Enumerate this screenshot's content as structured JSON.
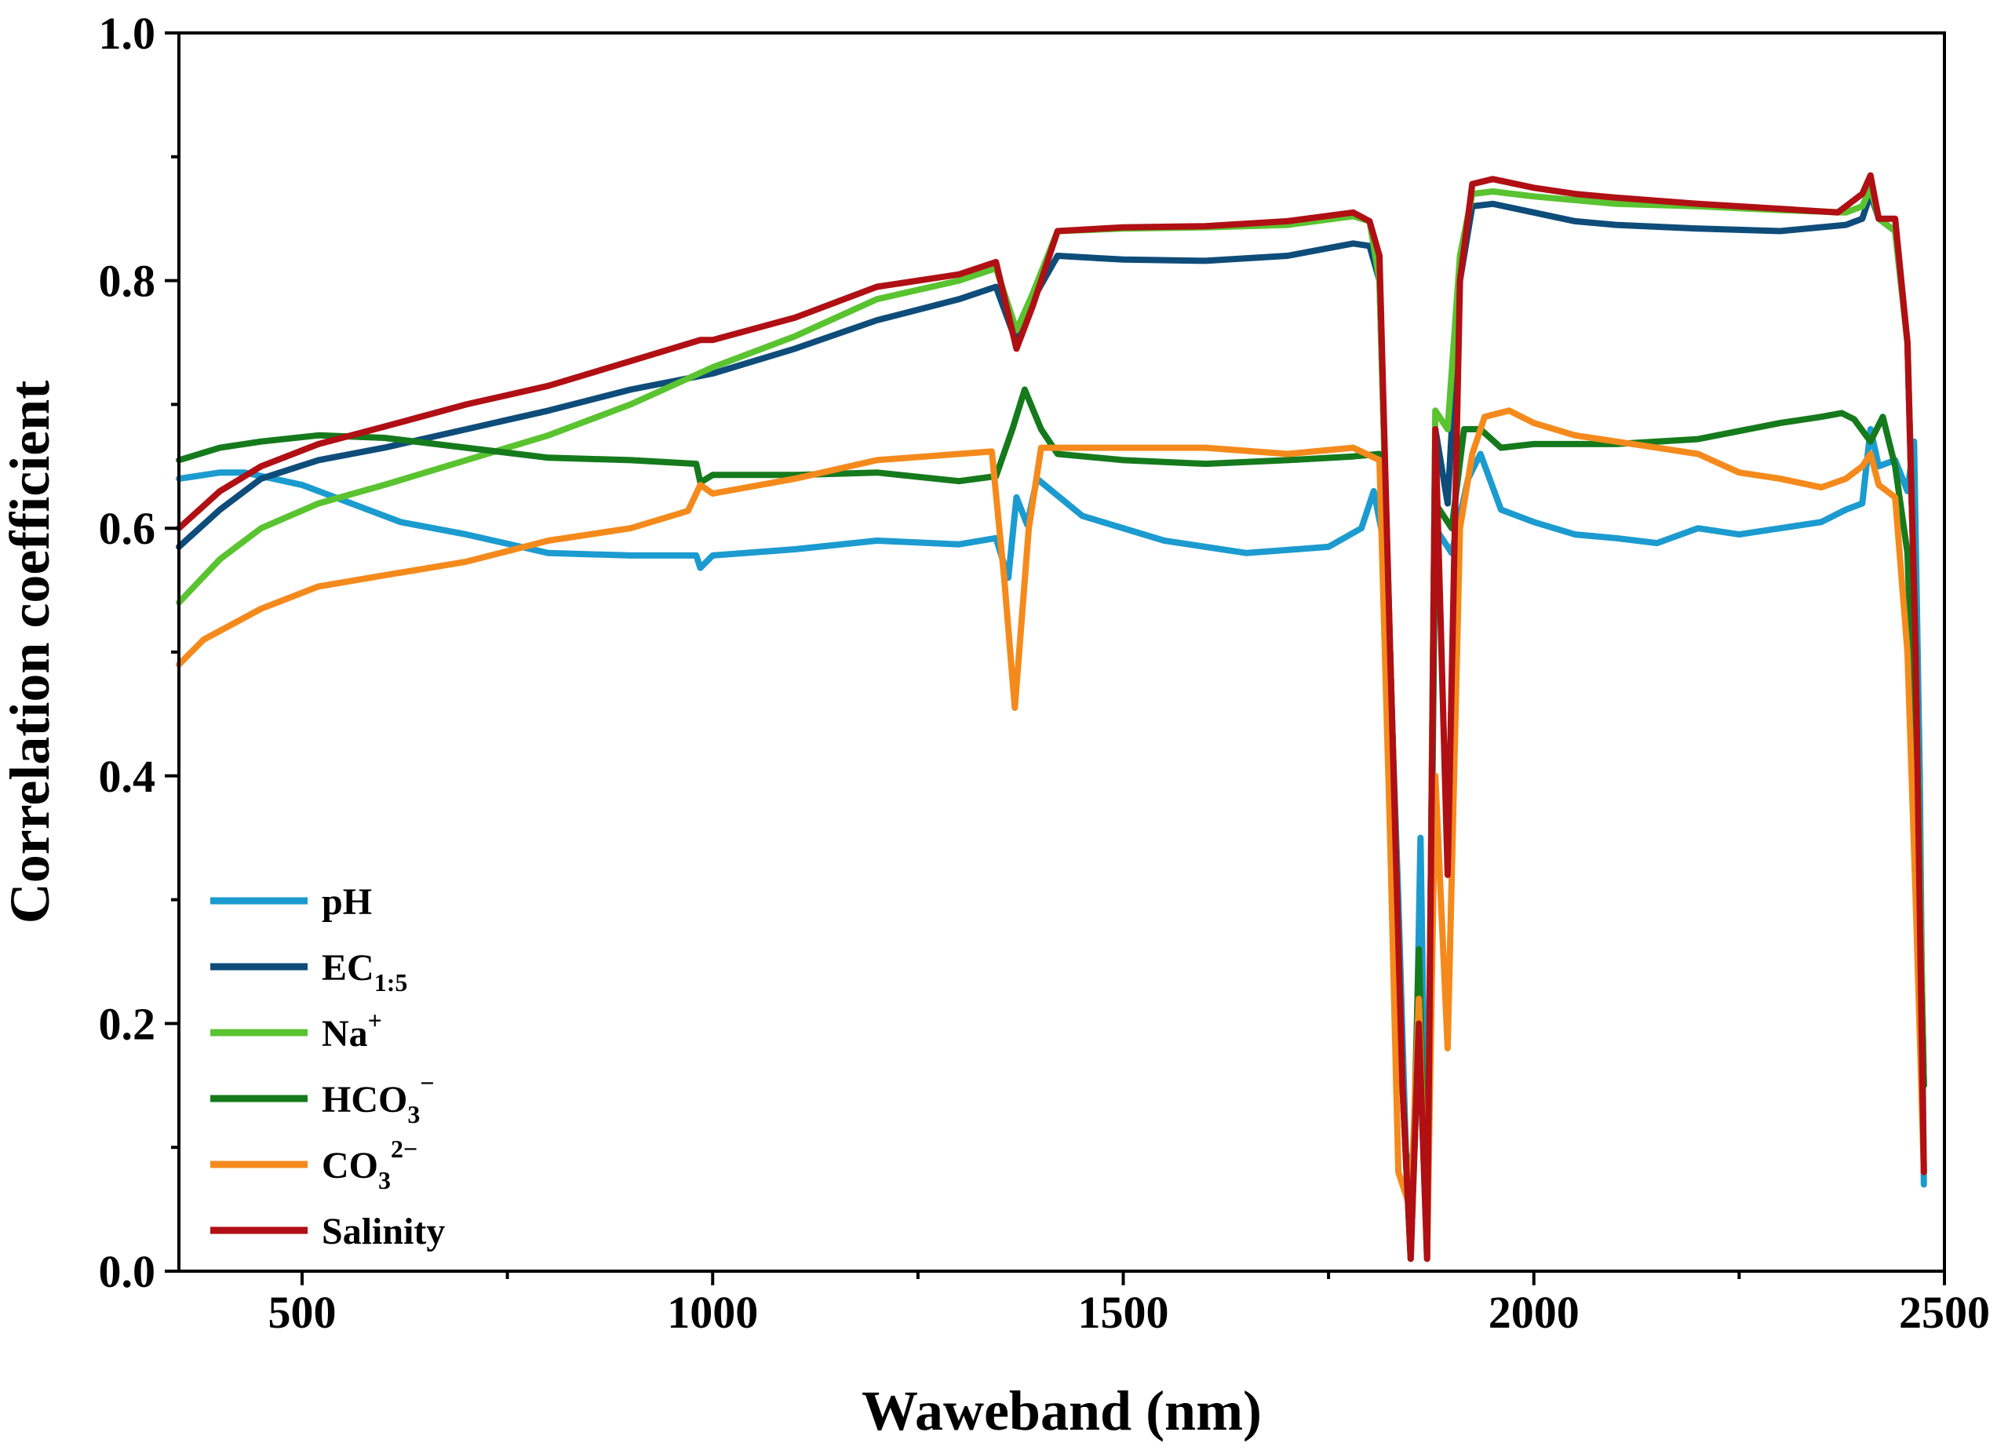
{
  "chart_data": {
    "type": "line",
    "title": "",
    "xlabel": "Waweband (nm)",
    "ylabel": "Correlation coefficient",
    "xlim": [
      350,
      2500
    ],
    "ylim": [
      0.0,
      1.0
    ],
    "x_major_ticks": [
      500,
      1000,
      1500,
      2000,
      2500
    ],
    "x_minor_ticks": [
      750,
      1250,
      1750,
      2250
    ],
    "y_major_ticks": [
      0.0,
      0.2,
      0.4,
      0.6,
      0.8,
      1.0
    ],
    "y_minor_ticks": [
      0.1,
      0.3,
      0.5,
      0.7,
      0.9
    ],
    "x_tick_labels": [
      "500",
      "1000",
      "1500",
      "2000",
      "2500"
    ],
    "y_tick_labels": [
      "0.0",
      "0.2",
      "0.4",
      "0.6",
      "0.8",
      "1.0"
    ],
    "grid": false,
    "legend_position": "bottom-left",
    "series": [
      {
        "name": "pH",
        "name_sub": "",
        "name_sup": "",
        "color": "#1B9BCF",
        "points": [
          [
            350,
            0.64
          ],
          [
            400,
            0.645
          ],
          [
            430,
            0.645
          ],
          [
            500,
            0.635
          ],
          [
            560,
            0.62
          ],
          [
            620,
            0.605
          ],
          [
            700,
            0.595
          ],
          [
            800,
            0.58
          ],
          [
            900,
            0.578
          ],
          [
            980,
            0.578
          ],
          [
            985,
            0.568
          ],
          [
            1000,
            0.578
          ],
          [
            1100,
            0.583
          ],
          [
            1200,
            0.59
          ],
          [
            1300,
            0.587
          ],
          [
            1345,
            0.592
          ],
          [
            1360,
            0.56
          ],
          [
            1370,
            0.625
          ],
          [
            1383,
            0.603
          ],
          [
            1395,
            0.64
          ],
          [
            1450,
            0.61
          ],
          [
            1550,
            0.59
          ],
          [
            1650,
            0.58
          ],
          [
            1750,
            0.585
          ],
          [
            1790,
            0.6
          ],
          [
            1805,
            0.63
          ],
          [
            1820,
            0.58
          ],
          [
            1835,
            0.3
          ],
          [
            1845,
            0.08
          ],
          [
            1855,
            0.1
          ],
          [
            1862,
            0.35
          ],
          [
            1870,
            0.01
          ],
          [
            1880,
            0.6
          ],
          [
            1900,
            0.58
          ],
          [
            1920,
            0.64
          ],
          [
            1935,
            0.66
          ],
          [
            1960,
            0.615
          ],
          [
            2000,
            0.605
          ],
          [
            2050,
            0.595
          ],
          [
            2100,
            0.592
          ],
          [
            2150,
            0.588
          ],
          [
            2200,
            0.6
          ],
          [
            2250,
            0.595
          ],
          [
            2300,
            0.6
          ],
          [
            2350,
            0.605
          ],
          [
            2380,
            0.615
          ],
          [
            2400,
            0.62
          ],
          [
            2410,
            0.68
          ],
          [
            2420,
            0.65
          ],
          [
            2440,
            0.655
          ],
          [
            2455,
            0.63
          ],
          [
            2463,
            0.67
          ],
          [
            2470,
            0.4
          ],
          [
            2475,
            0.07
          ]
        ]
      },
      {
        "name": "EC",
        "name_sub": "1:5",
        "name_sup": "",
        "color": "#0E4C7A",
        "points": [
          [
            350,
            0.585
          ],
          [
            400,
            0.615
          ],
          [
            450,
            0.64
          ],
          [
            520,
            0.655
          ],
          [
            600,
            0.665
          ],
          [
            700,
            0.68
          ],
          [
            800,
            0.695
          ],
          [
            900,
            0.712
          ],
          [
            1000,
            0.725
          ],
          [
            1100,
            0.745
          ],
          [
            1200,
            0.768
          ],
          [
            1300,
            0.785
          ],
          [
            1345,
            0.795
          ],
          [
            1370,
            0.75
          ],
          [
            1390,
            0.785
          ],
          [
            1420,
            0.82
          ],
          [
            1500,
            0.817
          ],
          [
            1600,
            0.816
          ],
          [
            1700,
            0.82
          ],
          [
            1780,
            0.83
          ],
          [
            1800,
            0.828
          ],
          [
            1812,
            0.8
          ],
          [
            1825,
            0.5
          ],
          [
            1840,
            0.15
          ],
          [
            1850,
            0.02
          ],
          [
            1860,
            0.2
          ],
          [
            1870,
            0.02
          ],
          [
            1880,
            0.68
          ],
          [
            1895,
            0.62
          ],
          [
            1910,
            0.8
          ],
          [
            1925,
            0.86
          ],
          [
            1950,
            0.862
          ],
          [
            2000,
            0.855
          ],
          [
            2050,
            0.848
          ],
          [
            2100,
            0.845
          ],
          [
            2200,
            0.842
          ],
          [
            2300,
            0.84
          ],
          [
            2380,
            0.845
          ],
          [
            2400,
            0.85
          ],
          [
            2410,
            0.87
          ],
          [
            2420,
            0.85
          ],
          [
            2440,
            0.84
          ],
          [
            2455,
            0.75
          ],
          [
            2465,
            0.5
          ],
          [
            2475,
            0.15
          ]
        ]
      },
      {
        "name": "Na",
        "name_sub": "",
        "name_sup": "+",
        "color": "#5AC330",
        "points": [
          [
            350,
            0.54
          ],
          [
            400,
            0.575
          ],
          [
            450,
            0.6
          ],
          [
            520,
            0.62
          ],
          [
            600,
            0.635
          ],
          [
            700,
            0.655
          ],
          [
            800,
            0.675
          ],
          [
            900,
            0.7
          ],
          [
            1000,
            0.73
          ],
          [
            1100,
            0.755
          ],
          [
            1200,
            0.785
          ],
          [
            1300,
            0.8
          ],
          [
            1345,
            0.81
          ],
          [
            1370,
            0.76
          ],
          [
            1390,
            0.79
          ],
          [
            1420,
            0.84
          ],
          [
            1500,
            0.842
          ],
          [
            1600,
            0.843
          ],
          [
            1700,
            0.845
          ],
          [
            1780,
            0.852
          ],
          [
            1800,
            0.848
          ],
          [
            1812,
            0.8
          ],
          [
            1825,
            0.5
          ],
          [
            1840,
            0.15
          ],
          [
            1850,
            0.01
          ],
          [
            1860,
            0.2
          ],
          [
            1870,
            0.01
          ],
          [
            1880,
            0.695
          ],
          [
            1895,
            0.68
          ],
          [
            1910,
            0.82
          ],
          [
            1925,
            0.87
          ],
          [
            1950,
            0.872
          ],
          [
            2000,
            0.868
          ],
          [
            2050,
            0.865
          ],
          [
            2100,
            0.862
          ],
          [
            2200,
            0.86
          ],
          [
            2300,
            0.857
          ],
          [
            2380,
            0.855
          ],
          [
            2400,
            0.86
          ],
          [
            2410,
            0.875
          ],
          [
            2420,
            0.85
          ],
          [
            2440,
            0.84
          ],
          [
            2455,
            0.75
          ],
          [
            2465,
            0.5
          ],
          [
            2475,
            0.15
          ]
        ]
      },
      {
        "name": "HCO",
        "name_sub": "3",
        "name_sup": "−",
        "color": "#157A1C",
        "points": [
          [
            350,
            0.655
          ],
          [
            400,
            0.665
          ],
          [
            450,
            0.67
          ],
          [
            520,
            0.675
          ],
          [
            600,
            0.673
          ],
          [
            700,
            0.665
          ],
          [
            800,
            0.657
          ],
          [
            900,
            0.655
          ],
          [
            980,
            0.652
          ],
          [
            985,
            0.637
          ],
          [
            1000,
            0.643
          ],
          [
            1100,
            0.643
          ],
          [
            1200,
            0.645
          ],
          [
            1300,
            0.638
          ],
          [
            1345,
            0.642
          ],
          [
            1365,
            0.68
          ],
          [
            1380,
            0.712
          ],
          [
            1400,
            0.68
          ],
          [
            1420,
            0.66
          ],
          [
            1500,
            0.655
          ],
          [
            1600,
            0.652
          ],
          [
            1700,
            0.655
          ],
          [
            1780,
            0.658
          ],
          [
            1812,
            0.66
          ],
          [
            1825,
            0.5
          ],
          [
            1840,
            0.15
          ],
          [
            1850,
            0.01
          ],
          [
            1860,
            0.26
          ],
          [
            1870,
            0.02
          ],
          [
            1880,
            0.62
          ],
          [
            1900,
            0.6
          ],
          [
            1915,
            0.68
          ],
          [
            1935,
            0.68
          ],
          [
            1960,
            0.665
          ],
          [
            2000,
            0.668
          ],
          [
            2100,
            0.668
          ],
          [
            2200,
            0.672
          ],
          [
            2300,
            0.685
          ],
          [
            2350,
            0.69
          ],
          [
            2375,
            0.693
          ],
          [
            2390,
            0.688
          ],
          [
            2410,
            0.67
          ],
          [
            2425,
            0.69
          ],
          [
            2440,
            0.65
          ],
          [
            2455,
            0.58
          ],
          [
            2465,
            0.4
          ],
          [
            2475,
            0.15
          ]
        ]
      },
      {
        "name": "CO",
        "name_sub": "3",
        "name_sup": "2−",
        "color": "#F58A1C",
        "points": [
          [
            350,
            0.49
          ],
          [
            380,
            0.51
          ],
          [
            450,
            0.535
          ],
          [
            520,
            0.553
          ],
          [
            600,
            0.562
          ],
          [
            700,
            0.573
          ],
          [
            800,
            0.59
          ],
          [
            900,
            0.6
          ],
          [
            950,
            0.61
          ],
          [
            970,
            0.614
          ],
          [
            985,
            0.635
          ],
          [
            1000,
            0.628
          ],
          [
            1100,
            0.64
          ],
          [
            1200,
            0.655
          ],
          [
            1300,
            0.66
          ],
          [
            1340,
            0.662
          ],
          [
            1355,
            0.56
          ],
          [
            1368,
            0.455
          ],
          [
            1385,
            0.6
          ],
          [
            1400,
            0.665
          ],
          [
            1450,
            0.665
          ],
          [
            1500,
            0.665
          ],
          [
            1600,
            0.665
          ],
          [
            1700,
            0.66
          ],
          [
            1780,
            0.665
          ],
          [
            1812,
            0.655
          ],
          [
            1825,
            0.35
          ],
          [
            1835,
            0.08
          ],
          [
            1850,
            0.05
          ],
          [
            1860,
            0.22
          ],
          [
            1870,
            0.01
          ],
          [
            1880,
            0.4
          ],
          [
            1895,
            0.18
          ],
          [
            1910,
            0.6
          ],
          [
            1925,
            0.66
          ],
          [
            1940,
            0.69
          ],
          [
            1970,
            0.695
          ],
          [
            2000,
            0.685
          ],
          [
            2050,
            0.675
          ],
          [
            2100,
            0.67
          ],
          [
            2150,
            0.665
          ],
          [
            2200,
            0.66
          ],
          [
            2250,
            0.645
          ],
          [
            2300,
            0.64
          ],
          [
            2350,
            0.633
          ],
          [
            2380,
            0.64
          ],
          [
            2400,
            0.65
          ],
          [
            2410,
            0.66
          ],
          [
            2420,
            0.635
          ],
          [
            2440,
            0.625
          ],
          [
            2455,
            0.5
          ],
          [
            2465,
            0.3
          ],
          [
            2475,
            0.08
          ]
        ]
      },
      {
        "name": "Salinity",
        "name_sub": "",
        "name_sup": "",
        "color": "#B00F14",
        "points": [
          [
            350,
            0.6
          ],
          [
            400,
            0.63
          ],
          [
            450,
            0.65
          ],
          [
            520,
            0.668
          ],
          [
            600,
            0.682
          ],
          [
            700,
            0.7
          ],
          [
            800,
            0.715
          ],
          [
            900,
            0.735
          ],
          [
            985,
            0.752
          ],
          [
            1000,
            0.752
          ],
          [
            1100,
            0.77
          ],
          [
            1200,
            0.795
          ],
          [
            1300,
            0.805
          ],
          [
            1345,
            0.815
          ],
          [
            1370,
            0.745
          ],
          [
            1390,
            0.78
          ],
          [
            1420,
            0.84
          ],
          [
            1500,
            0.843
          ],
          [
            1600,
            0.844
          ],
          [
            1700,
            0.848
          ],
          [
            1780,
            0.855
          ],
          [
            1800,
            0.848
          ],
          [
            1812,
            0.82
          ],
          [
            1825,
            0.5
          ],
          [
            1840,
            0.15
          ],
          [
            1850,
            0.01
          ],
          [
            1860,
            0.2
          ],
          [
            1870,
            0.01
          ],
          [
            1880,
            0.68
          ],
          [
            1895,
            0.32
          ],
          [
            1910,
            0.8
          ],
          [
            1925,
            0.878
          ],
          [
            1950,
            0.882
          ],
          [
            2000,
            0.875
          ],
          [
            2050,
            0.87
          ],
          [
            2100,
            0.867
          ],
          [
            2200,
            0.862
          ],
          [
            2300,
            0.858
          ],
          [
            2370,
            0.855
          ],
          [
            2400,
            0.87
          ],
          [
            2410,
            0.885
          ],
          [
            2420,
            0.85
          ],
          [
            2440,
            0.85
          ],
          [
            2455,
            0.75
          ],
          [
            2465,
            0.5
          ],
          [
            2475,
            0.08
          ]
        ]
      }
    ]
  }
}
